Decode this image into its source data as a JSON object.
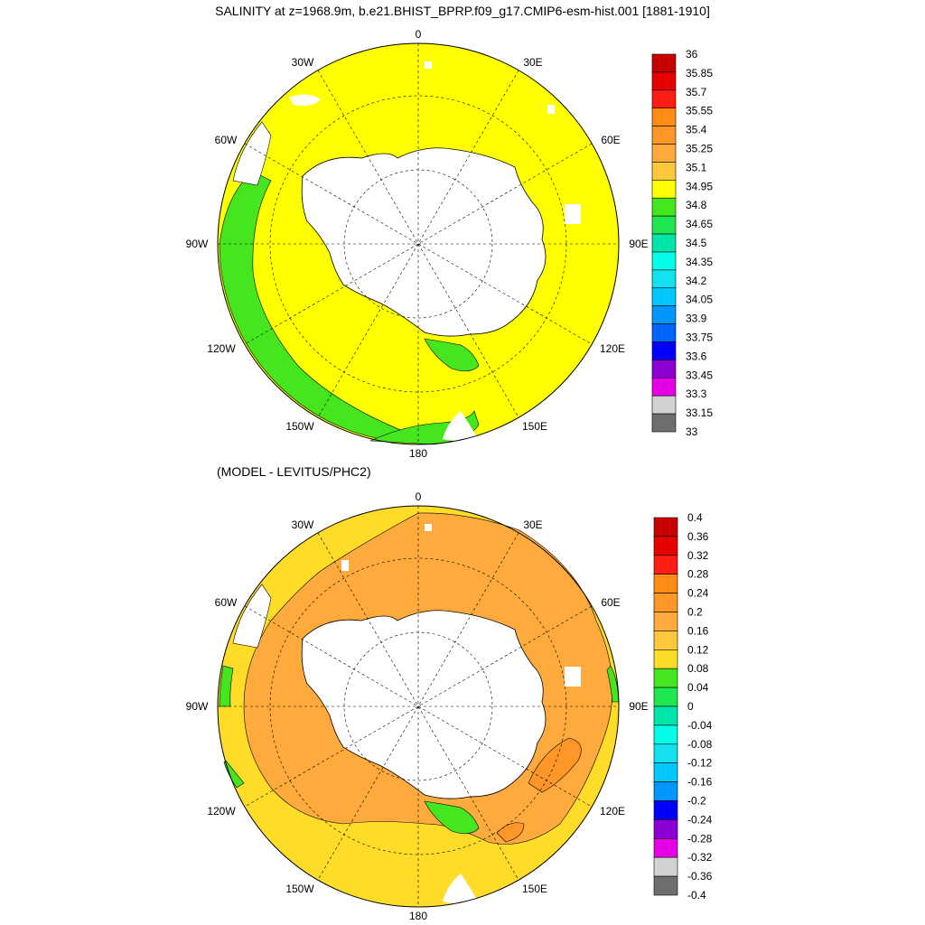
{
  "top_panel": {
    "title": "SALINITY at z=1968.9m, b.e21.BHIST_BPRP.f09_g17.CMIP6-esm-hist.001 [1881-1910]",
    "longitude_labels": [
      "0",
      "30E",
      "60E",
      "90E",
      "120E",
      "150E",
      "180",
      "150W",
      "120W",
      "90W",
      "60W",
      "30W"
    ],
    "colorbar": {
      "labels": [
        "36",
        "35.85",
        "35.7",
        "35.55",
        "35.4",
        "35.25",
        "35.1",
        "34.95",
        "34.8",
        "34.65",
        "34.5",
        "34.35",
        "34.2",
        "34.05",
        "33.9",
        "33.75",
        "33.6",
        "33.45",
        "33.3",
        "33.15",
        "33"
      ],
      "colors": [
        "#c80000",
        "#e60000",
        "#ff1e14",
        "#ff8c14",
        "#ff9628",
        "#ffaa3c",
        "#ffc83c",
        "#ffff00",
        "#46e61e",
        "#1ee650",
        "#00e6aa",
        "#00ffe6",
        "#14e1f0",
        "#00c8ff",
        "#0096ff",
        "#0064ff",
        "#0000ff",
        "#8c00d2",
        "#e600e6",
        "#d2d2d2",
        "#6e6e6e"
      ]
    }
  },
  "bottom_panel": {
    "title": "(MODEL - LEVITUS/PHC2)",
    "longitude_labels": [
      "0",
      "30E",
      "60E",
      "90E",
      "120E",
      "150E",
      "180",
      "150W",
      "120W",
      "90W",
      "60W",
      "30W"
    ],
    "colorbar": {
      "labels": [
        "0.4",
        "0.36",
        "0.32",
        "0.28",
        "0.24",
        "0.2",
        "0.16",
        "0.12",
        "0.08",
        "0.04",
        "0",
        "-0.04",
        "-0.08",
        "-0.12",
        "-0.16",
        "-0.2",
        "-0.24",
        "-0.28",
        "-0.32",
        "-0.36",
        "-0.4"
      ],
      "colors": [
        "#c80000",
        "#e60000",
        "#ff1e14",
        "#ff8c14",
        "#ff9628",
        "#ffaa3c",
        "#ffc83c",
        "#ffdc28",
        "#46e61e",
        "#1ee650",
        "#00e6aa",
        "#00ffe6",
        "#14e1f0",
        "#00c8ff",
        "#0096ff",
        "#0000ff",
        "#8c00d2",
        "#e600e6",
        "#d2d2d2",
        "#6e6e6e"
      ]
    }
  }
}
